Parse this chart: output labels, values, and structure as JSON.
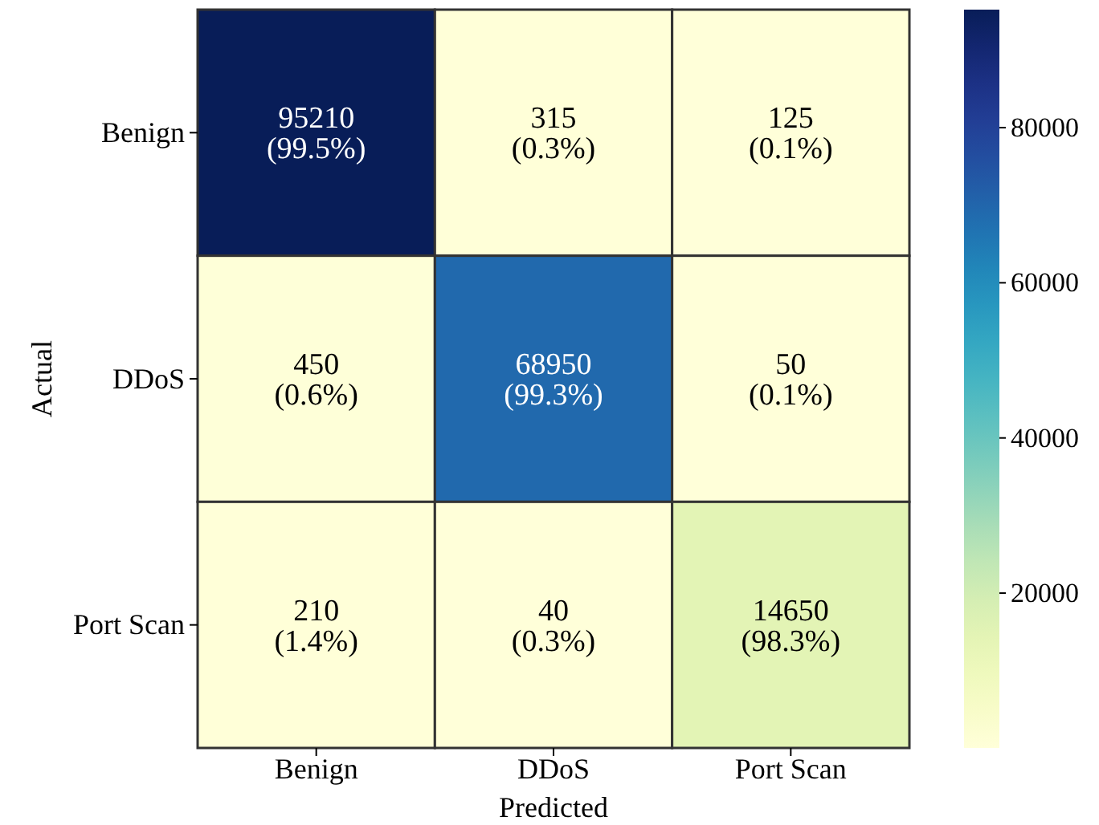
{
  "chart_data": {
    "type": "heatmap",
    "xlabel": "Predicted",
    "ylabel": "Actual",
    "categories": [
      "Benign",
      "DDoS",
      "Port Scan"
    ],
    "y_categories": [
      "Benign",
      "DDoS",
      "Port Scan"
    ],
    "cells": [
      [
        95210,
        315,
        125
      ],
      [
        450,
        68950,
        50
      ],
      [
        210,
        40,
        14650
      ]
    ],
    "cell_labels": [
      [
        "95210\n(99.5%)",
        "315\n(0.3%)",
        "125\n(0.1%)"
      ],
      [
        "450\n(0.6%)",
        "68950\n(99.3%)",
        "50\n(0.1%)"
      ],
      [
        "210\n(1.4%)",
        "40\n(0.3%)",
        "14650\n(98.3%)"
      ]
    ],
    "clim": [
      40,
      95210
    ],
    "cticks": [
      20000,
      40000,
      60000,
      80000
    ]
  }
}
